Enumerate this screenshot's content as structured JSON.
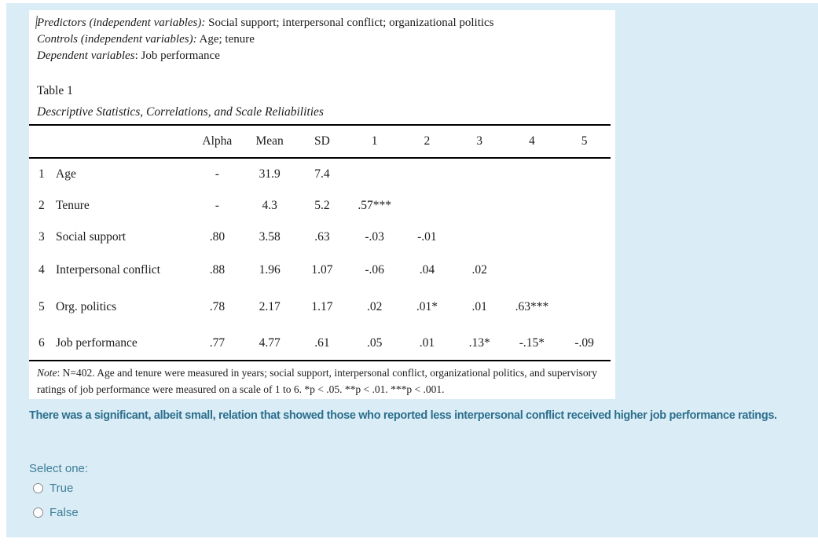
{
  "colors": {
    "panel_bg": "#daedf6",
    "image_bg": "#ffffff",
    "statement_text": "#2d6f8d",
    "option_text": "#3e7d97",
    "table_text": "#1c1c1c",
    "table_rule": "#000000"
  },
  "passage": {
    "lines": [
      {
        "italic": "Predictors (independent variables):",
        "normal": " Social support; interpersonal conflict; organizational politics"
      },
      {
        "italic": "Controls (independent variables):",
        "normal": " Age; tenure"
      },
      {
        "italic": "Dependent variables",
        "normal": ": Job performance"
      }
    ]
  },
  "table": {
    "label": "Table 1",
    "title": "Descriptive Statistics, Correlations, and Scale Reliabilities",
    "headers": [
      "",
      "",
      "Alpha",
      "Mean",
      "SD",
      "1",
      "2",
      "3",
      "4",
      "5"
    ],
    "rows": [
      {
        "num": "1",
        "name": "Age",
        "values": [
          "-",
          "31.9",
          "7.4",
          "",
          "",
          "",
          "",
          ""
        ]
      },
      {
        "num": "2",
        "name": "Tenure",
        "values": [
          "-",
          "4.3",
          "5.2",
          ".57***",
          "",
          "",
          "",
          ""
        ]
      },
      {
        "num": "3",
        "name": "Social support",
        "values": [
          ".80",
          "3.58",
          ".63",
          "-.03",
          "-.01",
          "",
          "",
          ""
        ]
      },
      {
        "num": "4",
        "name": "Interpersonal conflict",
        "values": [
          ".88",
          "1.96",
          "1.07",
          "-.06",
          ".04",
          ".02",
          "",
          ""
        ]
      },
      {
        "num": "5",
        "name": "Org. politics",
        "values": [
          ".78",
          "2.17",
          "1.17",
          ".02",
          ".01*",
          ".01",
          ".63***",
          ""
        ]
      },
      {
        "num": "6",
        "name": "Job performance",
        "values": [
          ".77",
          "4.77",
          ".61",
          ".05",
          ".01",
          ".13*",
          "-.15*",
          "-.09"
        ]
      }
    ],
    "note_italic": "Note",
    "note_rest": ": N=402. Age and tenure were measured in years; social support, interpersonal conflict, organizational politics, and supervisory ratings of job performance were measured on a scale of 1 to 6. *p < .05. **p < .01. ***p < .001."
  },
  "question": {
    "statement": "There was a significant, albeit small, relation that showed those who reported less interpersonal conflict received higher job performance ratings.",
    "prompt": "Select one:",
    "options": [
      {
        "label": "True"
      },
      {
        "label": "False"
      }
    ]
  }
}
